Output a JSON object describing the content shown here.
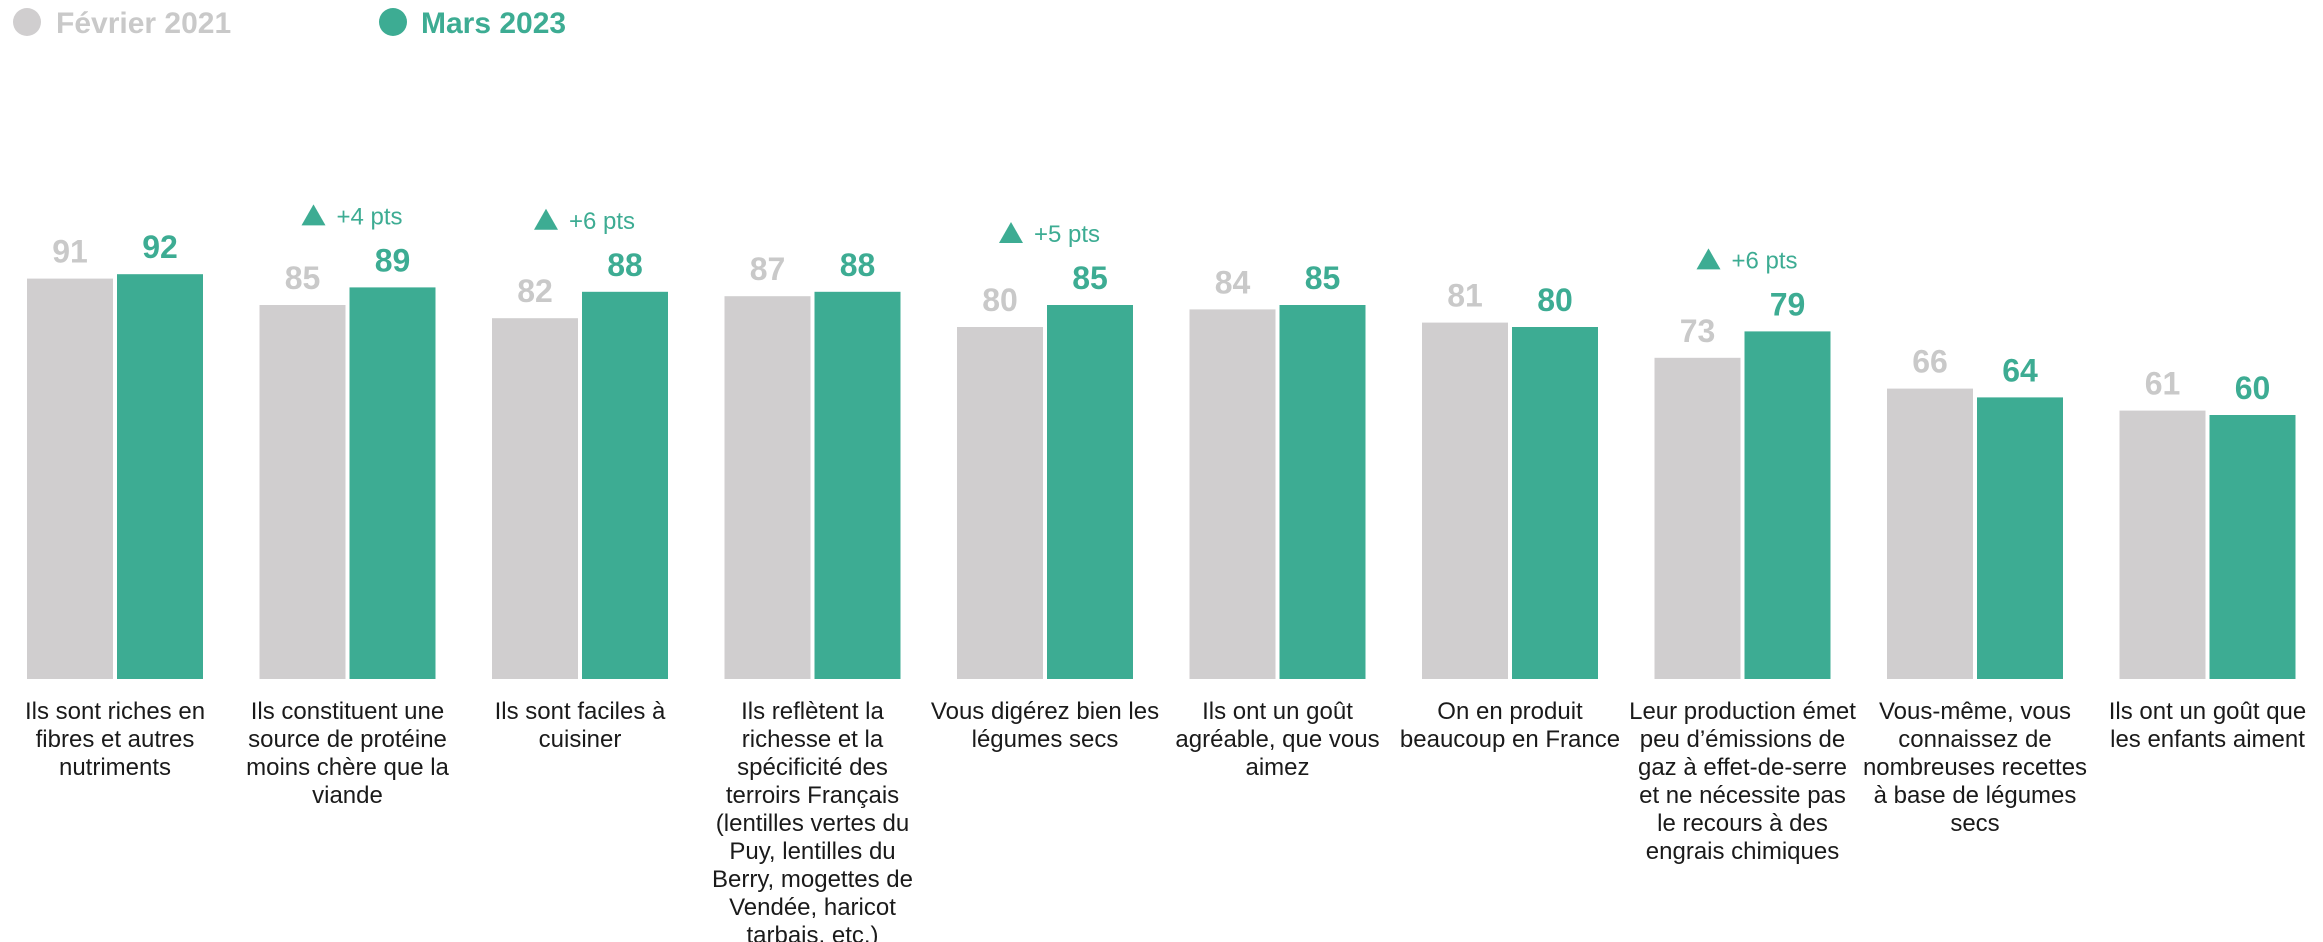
{
  "chart_data": {
    "type": "bar",
    "categories": [
      "Ils sont riches en fibres et autres nutriments",
      "Ils constituent une source de protéine moins chère que la viande",
      "Ils sont faciles à cuisiner",
      "Ils reflètent la richesse et la spécificité des terroirs Français (lentilles vertes du Puy, lentilles du Berry, mogettes de Vendée, haricot tarbais, etc.)",
      "Vous digérez bien les légumes secs",
      "Ils ont un goût agréable, que vous aimez",
      "On en produit beaucoup en France",
      "Leur production émet peu d’émissions de gaz à effet-de-serre et ne nécessite pas le recours à des engrais chimiques",
      "Vous-même, vous connaissez de nombreuses recettes à base de légumes secs",
      "Ils ont un goût que les enfants aiment"
    ],
    "category_lines": [
      [
        "Ils sont riches en",
        "fibres et autres",
        "nutriments"
      ],
      [
        "Ils constituent une",
        "source de protéine",
        "moins chère que la",
        "viande"
      ],
      [
        "Ils sont faciles à",
        "cuisiner"
      ],
      [
        "Ils reflètent la",
        "richesse et la",
        "spécificité des",
        "terroirs Français",
        "(lentilles vertes du",
        "Puy, lentilles du",
        "Berry, mogettes de",
        "Vendée, haricot",
        "tarbais, etc.)"
      ],
      [
        "Vous digérez bien les",
        "légumes secs"
      ],
      [
        "Ils ont un goût",
        "agréable, que vous",
        "aimez"
      ],
      [
        "On en produit",
        "beaucoup en France"
      ],
      [
        "Leur production émet",
        "peu d’émissions de",
        "gaz à effet-de-serre",
        "et ne nécessite pas",
        "le recours à des",
        "engrais chimiques"
      ],
      [
        "Vous-même, vous",
        "connaissez de",
        "nombreuses recettes",
        "à base de légumes",
        "secs"
      ],
      [
        "Ils ont un goût que",
        "les enfants aiment"
      ]
    ],
    "series": [
      {
        "name": "Février 2021",
        "color": "#d0cecf",
        "label_color": "#c9c9c9",
        "values": [
          91,
          85,
          82,
          87,
          80,
          84,
          81,
          73,
          66,
          61
        ]
      },
      {
        "name": "Mars 2023",
        "color": "#3dac93",
        "label_color": "#3dac93",
        "values": [
          92,
          89,
          88,
          88,
          85,
          85,
          80,
          79,
          64,
          60
        ]
      }
    ],
    "annotations": [
      {
        "category_index": 1,
        "text": "+4 pts",
        "symbol": "triangle-up"
      },
      {
        "category_index": 2,
        "text": "+6 pts",
        "symbol": "triangle-up"
      },
      {
        "category_index": 4,
        "text": "+5 pts",
        "symbol": "triangle-up"
      },
      {
        "category_index": 7,
        "text": "+6 pts",
        "symbol": "triangle-up"
      }
    ],
    "ylim": [
      0,
      100
    ],
    "grid": false,
    "legend_position": "top-left",
    "colors": {
      "annotation": "#3dac93",
      "category_text": "#1a1a1a"
    }
  }
}
